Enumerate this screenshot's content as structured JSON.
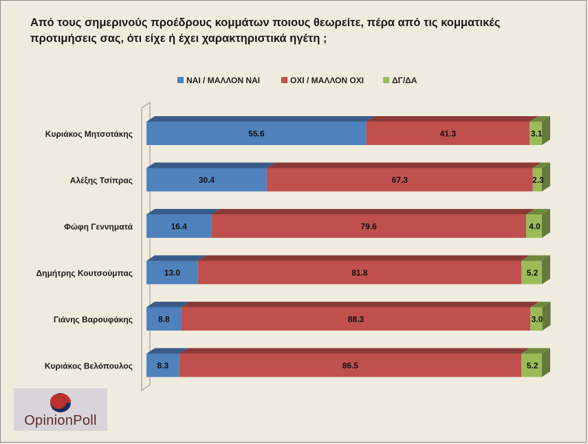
{
  "title": "Από τους σημερινούς προέδρους κομμάτων ποιους θεωρείτε, πέρα από τις κομματικές προτιμήσεις σας, ότι είχε ή έχει χαρακτηριστικά ηγέτη ;",
  "logo": {
    "text": "OpinionPoll"
  },
  "colors": {
    "yes": "#4f81bd",
    "no": "#c0504d",
    "dk": "#9bbb59",
    "background": "#efebde"
  },
  "chart_data": {
    "type": "bar",
    "orientation": "horizontal",
    "stacked": true,
    "style": "3d",
    "categories": [
      "Κυριάκος Μητσοτάκης",
      "Αλέξης Τσίπρας",
      "Φώφη Γεννηματά",
      "Δημήτρης Κουτσούμπας",
      "Γιάνης Βαρουφάκης",
      "Κυριάκος Βελόπουλος"
    ],
    "series": [
      {
        "name": "ΝΑΙ / ΜΑΛΛΟΝ ΝΑΙ",
        "values": [
          55.6,
          30.4,
          16.4,
          13.0,
          8.8,
          8.3
        ],
        "labels": [
          "55.6",
          "30.4",
          "16.4",
          "13.0",
          "8.8",
          "8.3"
        ]
      },
      {
        "name": "ΟΧΙ / ΜΑΛΛΟΝ ΟΧΙ",
        "values": [
          41.3,
          67.3,
          79.6,
          81.8,
          88.3,
          86.5
        ],
        "labels": [
          "41.3",
          "67.3",
          "79.6",
          "81.8",
          "88.3",
          "86.5"
        ]
      },
      {
        "name": "ΔΓ/ΔΑ",
        "values": [
          3.1,
          2.3,
          4.0,
          5.2,
          3.0,
          5.2
        ],
        "labels": [
          "3.1",
          "2.3",
          "4.0",
          "5.2",
          "3.0",
          "5.2"
        ]
      }
    ],
    "xlim": [
      0,
      100
    ],
    "legend_position": "top",
    "grid": false
  }
}
